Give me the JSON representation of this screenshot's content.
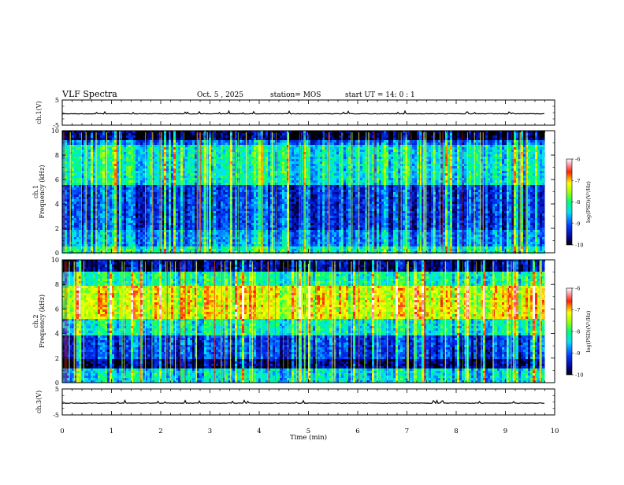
{
  "header": {
    "title": "VLF Spectra",
    "date": "Oct. 5 , 2025",
    "station": "station= MOS",
    "start": "start  UT  =   14: 0  : 1"
  },
  "chart_data": [
    {
      "type": "line",
      "name": "ch1-waveform",
      "ylabel": "ch.1(V)",
      "ylim": [
        -5,
        5
      ],
      "ytick_labels": [
        "5",
        "-5"
      ],
      "xlim": [
        0,
        10
      ],
      "baseline": 0
    },
    {
      "type": "heatmap",
      "name": "ch1-spectrogram",
      "ylabel": "ch.1\nFrequency (kHz)",
      "ylim": [
        0,
        10
      ],
      "ytick_labels": [
        "0",
        "2",
        "4",
        "6",
        "8",
        "10"
      ],
      "xlim": [
        0,
        10
      ],
      "data_extent_min": 9.8,
      "colorbar": {
        "label": "log(PSD)(V²/Hz)",
        "range": [
          -10,
          -6
        ],
        "tick_labels": [
          "-6",
          "-7",
          "-8",
          "-9",
          "-10"
        ]
      }
    },
    {
      "type": "heatmap",
      "name": "ch2-spectrogram",
      "ylabel": "ch.2\nFrequency (kHz)",
      "ylim": [
        0,
        10
      ],
      "ytick_labels": [
        "0",
        "2",
        "4",
        "6",
        "8",
        "10"
      ],
      "xlim": [
        0,
        10
      ],
      "data_extent_min": 9.8,
      "colorbar": {
        "label": "log(PSD)(V²/Hz)",
        "range": [
          -10,
          -6
        ],
        "tick_labels": [
          "-6",
          "-7",
          "-8",
          "-9",
          "-10"
        ]
      }
    },
    {
      "type": "line",
      "name": "ch3-waveform",
      "ylabel": "ch.3(V)",
      "ylim": [
        -5,
        5
      ],
      "ytick_labels": [
        "5",
        "-5"
      ],
      "xlim": [
        0,
        10
      ],
      "xlabel": "Time  (min)",
      "xtick_labels": [
        "0",
        "1",
        "2",
        "3",
        "4",
        "5",
        "6",
        "7",
        "8",
        "9",
        "10"
      ],
      "baseline": 0
    }
  ]
}
